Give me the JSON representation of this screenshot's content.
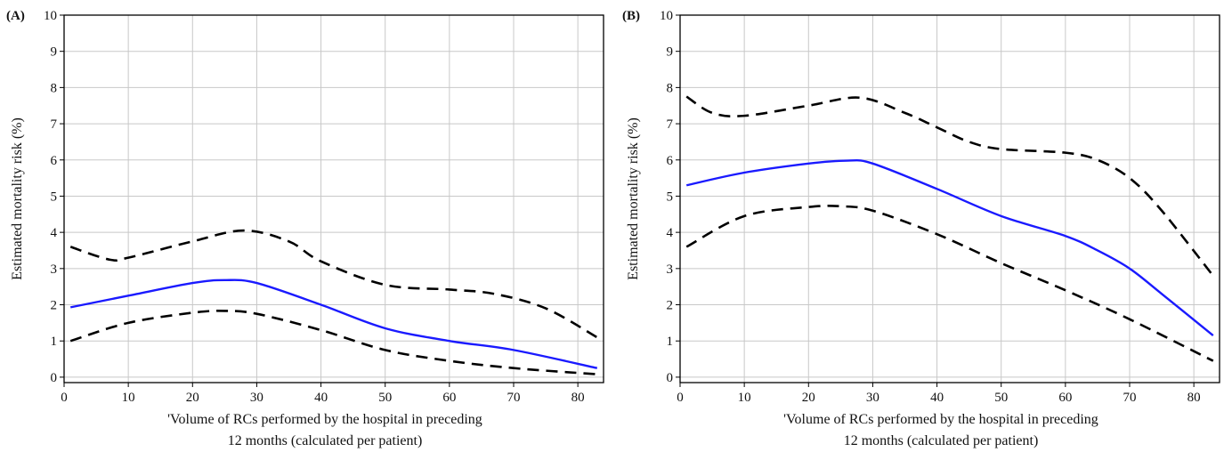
{
  "chart_data": [
    {
      "type": "line",
      "panel_label": "(A)",
      "xlabel_line1": "'Volume of RCs performed by the hospital in preceding",
      "xlabel_line2": "12 months (calculated per patient)",
      "ylabel": "Estimated mortality risk (%)",
      "xlim": [
        0,
        84
      ],
      "ylim": [
        -0.15,
        10
      ],
      "xticks": [
        0,
        10,
        20,
        30,
        40,
        50,
        60,
        70,
        80
      ],
      "yticks": [
        0,
        1,
        2,
        3,
        4,
        5,
        6,
        7,
        8,
        9,
        10
      ],
      "grid": true,
      "series": [
        {
          "style": "solid",
          "color": "#1a1aff",
          "x": [
            1,
            10,
            20,
            25,
            30,
            40,
            50,
            60,
            70,
            83
          ],
          "y": [
            1.93,
            2.25,
            2.6,
            2.68,
            2.6,
            2.0,
            1.35,
            1.0,
            0.75,
            0.25
          ]
        },
        {
          "style": "dashed",
          "color": "#000000",
          "x": [
            1,
            7,
            10,
            20,
            28,
            35,
            40,
            50,
            60,
            67,
            75,
            83
          ],
          "y": [
            3.6,
            3.25,
            3.3,
            3.75,
            4.05,
            3.75,
            3.2,
            2.55,
            2.42,
            2.3,
            1.9,
            1.1
          ]
        },
        {
          "style": "dashed",
          "color": "#000000",
          "x": [
            1,
            10,
            20,
            25,
            30,
            40,
            50,
            60,
            70,
            83
          ],
          "y": [
            1.0,
            1.5,
            1.78,
            1.83,
            1.75,
            1.3,
            0.75,
            0.45,
            0.25,
            0.08
          ]
        }
      ]
    },
    {
      "type": "line",
      "panel_label": "(B)",
      "xlabel_line1": "'Volume of RCs performed by the hospital in preceding",
      "xlabel_line2": "12 months (calculated per patient)",
      "ylabel": "Estimated mortality risk (%)",
      "xlim": [
        0,
        84
      ],
      "ylim": [
        -0.15,
        10
      ],
      "xticks": [
        0,
        10,
        20,
        30,
        40,
        50,
        60,
        70,
        80
      ],
      "yticks": [
        0,
        1,
        2,
        3,
        4,
        5,
        6,
        7,
        8,
        9,
        10
      ],
      "grid": true,
      "series": [
        {
          "style": "solid",
          "color": "#1a1aff",
          "x": [
            1,
            10,
            20,
            26,
            30,
            40,
            50,
            60,
            65,
            70,
            75,
            83
          ],
          "y": [
            5.3,
            5.65,
            5.9,
            5.98,
            5.9,
            5.2,
            4.45,
            3.9,
            3.5,
            3.0,
            2.3,
            1.15
          ]
        },
        {
          "style": "dashed",
          "color": "#000000",
          "x": [
            1,
            5,
            10,
            20,
            28,
            35,
            40,
            45,
            50,
            60,
            65,
            70,
            75,
            83
          ],
          "y": [
            7.75,
            7.3,
            7.22,
            7.5,
            7.72,
            7.3,
            6.9,
            6.5,
            6.3,
            6.2,
            6.0,
            5.5,
            4.6,
            2.8
          ]
        },
        {
          "style": "dashed",
          "color": "#000000",
          "x": [
            1,
            10,
            20,
            25,
            30,
            40,
            50,
            60,
            70,
            83
          ],
          "y": [
            3.6,
            4.45,
            4.7,
            4.72,
            4.6,
            3.95,
            3.15,
            2.4,
            1.6,
            0.45
          ]
        }
      ]
    }
  ]
}
